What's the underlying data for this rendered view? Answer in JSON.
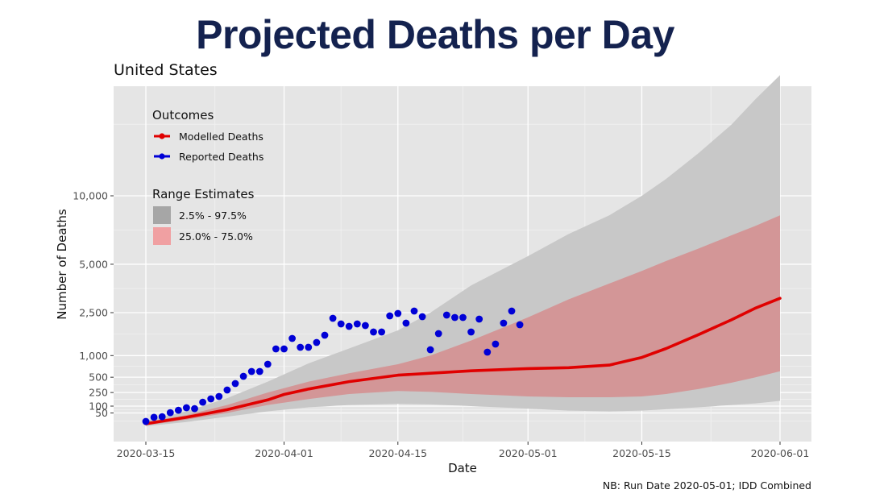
{
  "header": {
    "title": "Projected Deaths per Day",
    "subtitle": "United States"
  },
  "colors": {
    "title": "#14224f",
    "modelled": "#e00000",
    "reported": "#0000d6",
    "band_95": "#c8c8c8",
    "band_50": "#d49395",
    "panel": "#e5e5e5"
  },
  "chart_data": {
    "type": "line",
    "title": "Projected Deaths per Day",
    "subtitle": "United States",
    "xlabel": "Date",
    "ylabel": "Number of Deaths",
    "y_scale": "sqrt",
    "ylim": [
      0,
      26000
    ],
    "xlim": [
      "2020-03-12",
      "2020-06-04"
    ],
    "x_ticks": [
      "2020-03-15",
      "2020-04-01",
      "2020-04-15",
      "2020-05-01",
      "2020-05-15",
      "2020-06-01"
    ],
    "y_ticks": [
      {
        "value": 50,
        "label": "50"
      },
      {
        "value": 100,
        "label": "100"
      },
      {
        "value": 250,
        "label": "250"
      },
      {
        "value": 500,
        "label": "500"
      },
      {
        "value": 1000,
        "label": "1,000"
      },
      {
        "value": 2500,
        "label": "2,500"
      },
      {
        "value": 5000,
        "label": "5,000"
      },
      {
        "value": 10000,
        "label": "10,000"
      }
    ],
    "grid": true,
    "note": "NB: Run Date 2020-05-01; IDD Combined",
    "legend": {
      "placement": "top-left",
      "outcomes_title": "Outcomes",
      "outcomes": [
        {
          "label": "Modelled Deaths",
          "color": "#e00000"
        },
        {
          "label": "Reported Deaths",
          "color": "#0000d6"
        }
      ],
      "ranges_title": "Range Estimates",
      "ranges": [
        {
          "label": "2.5% - 97.5%",
          "color": "#a6a6a6"
        },
        {
          "label": "25.0% - 75.0%",
          "color": "#f0a0a2"
        }
      ]
    },
    "start_date": "2020-03-15",
    "series": [
      {
        "name": "Reported Deaths",
        "kind": "points",
        "day_offsets": [
          0,
          1,
          2,
          3,
          4,
          5,
          6,
          7,
          8,
          9,
          10,
          11,
          12,
          13,
          14,
          15,
          16,
          17,
          18,
          19,
          20,
          21,
          22,
          23,
          24,
          25,
          26,
          27,
          28,
          29,
          30,
          31,
          32,
          33,
          34,
          35,
          36,
          37,
          38,
          39,
          40,
          41,
          42,
          43,
          44,
          45,
          46
        ],
        "values": [
          12,
          27,
          30,
          52,
          68,
          87,
          80,
          137,
          172,
          200,
          285,
          386,
          518,
          616,
          616,
          780,
          1189,
          1189,
          1518,
          1237,
          1237,
          1387,
          1628,
          2265,
          2041,
          1948,
          2041,
          1979,
          1741,
          1741,
          2364,
          2466,
          2072,
          2569,
          2331,
          1165,
          1684,
          2398,
          2298,
          2298,
          1741,
          2232,
          1096,
          1336,
          2072,
          2569,
          2010
        ]
      },
      {
        "name": "Modelled Deaths",
        "kind": "line",
        "day_offsets": [
          0,
          5,
          10,
          15,
          17,
          20,
          25,
          31,
          35,
          40,
          47,
          52,
          57,
          61,
          64,
          68,
          72,
          75,
          78
        ],
        "values": [
          6,
          27,
          72,
          160,
          225,
          300,
          420,
          540,
          580,
          630,
          680,
          700,
          760,
          950,
          1200,
          1650,
          2200,
          2700,
          3150
        ]
      },
      {
        "name": "25.0% - 75.0%",
        "kind": "band",
        "day_offsets": [
          0,
          5,
          10,
          15,
          20,
          25,
          31,
          35,
          40,
          47,
          52,
          57,
          61,
          64,
          68,
          72,
          75,
          78
        ],
        "lower": [
          3,
          18,
          50,
          110,
          170,
          230,
          270,
          260,
          230,
          200,
          190,
          190,
          200,
          230,
          300,
          400,
          500,
          620
        ],
        "upper": [
          10,
          38,
          110,
          250,
          420,
          580,
          780,
          1000,
          1450,
          2300,
          3100,
          3900,
          4600,
          5200,
          6000,
          6900,
          7600,
          8400
        ]
      },
      {
        "name": "2.5% - 97.5%",
        "kind": "band",
        "day_offsets": [
          0,
          5,
          10,
          15,
          20,
          25,
          31,
          35,
          40,
          47,
          52,
          57,
          61,
          64,
          68,
          72,
          75,
          78
        ],
        "lower": [
          2,
          10,
          30,
          60,
          90,
          110,
          120,
          115,
          100,
          80,
          65,
          60,
          65,
          75,
          90,
          110,
          125,
          150
        ],
        "upper": [
          14,
          60,
          180,
          420,
          800,
          1200,
          1800,
          2500,
          3800,
          5500,
          7000,
          8400,
          10000,
          11500,
          14000,
          17000,
          20000,
          23000
        ]
      }
    ]
  }
}
